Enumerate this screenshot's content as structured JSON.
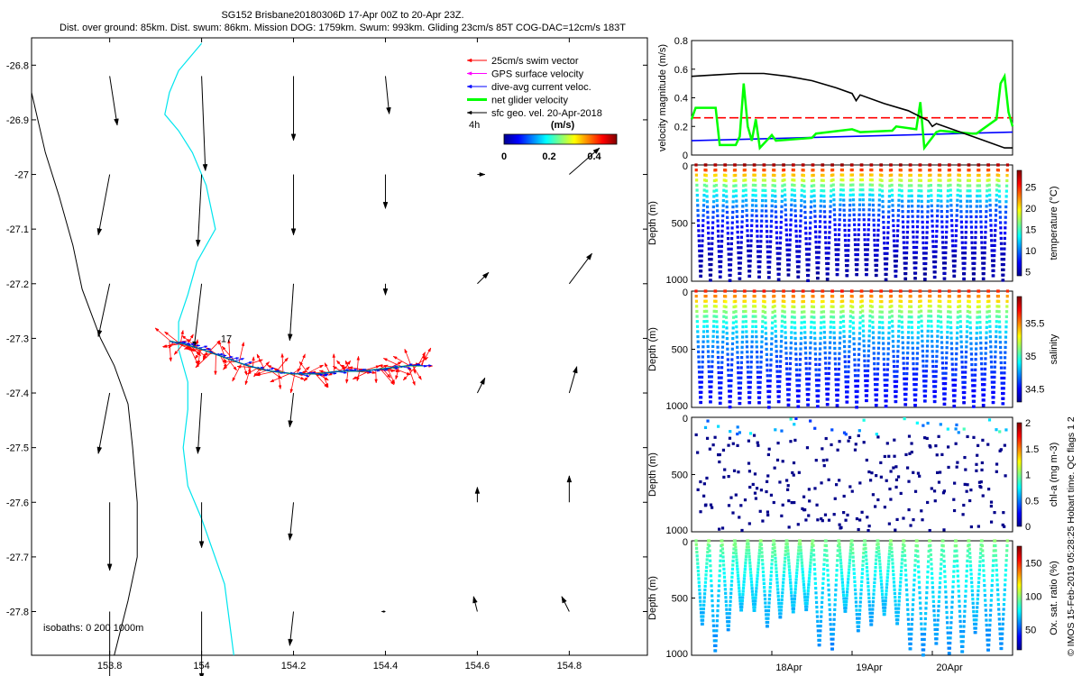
{
  "title": {
    "line1": "SG152 Brisbane20180306D 17-Apr 00Z to 20-Apr 23Z.",
    "line2": "Dist. over ground: 85km. Dist. swum: 86km. Mission DOG: 1759km. Swum: 993km. Gliding 23cm/s 85T COG-DAC=12cm/s 183T"
  },
  "credit": "© IMOS 15-Feb-2019 05:28:25 Hobart time. QC flags 1  2",
  "colors": {
    "swim": "#ff0000",
    "gps": "#ff00ff",
    "dac": "#0000ff",
    "net": "#00ff00",
    "geo": "#000000",
    "coast": "#00e5ee",
    "isobath": "#000000"
  },
  "chart_data": [
    {
      "type": "map",
      "name": "glider track and velocity map",
      "xlim": [
        153.63,
        154.97
      ],
      "ylim": [
        -27.88,
        -26.75
      ],
      "xticks": [
        153.8,
        154,
        154.2,
        154.4,
        154.6,
        154.8
      ],
      "xtick_labels": [
        "153.8",
        "154",
        "154.2",
        "154.4",
        "154.6",
        "154.8"
      ],
      "yticks": [
        -26.8,
        -26.9,
        -27,
        -27.1,
        -27.2,
        -27.3,
        -27.4,
        -27.5,
        -27.6,
        -27.7,
        -27.8
      ],
      "ytick_labels": [
        "-26.8",
        "-26.9",
        "-27",
        "-27.1",
        "-27.2",
        "-27.3",
        "-27.4",
        "-27.5",
        "-27.6",
        "-27.7",
        "-27.8"
      ],
      "legend": [
        "25cm/s swim vector",
        "GPS surface velocity",
        "dive-avg current veloc.",
        "net glider velocity",
        "sfc geo. vel. 20-Apr-2018"
      ],
      "legend_position": "top-right",
      "interval_label": "4h",
      "colorbar": {
        "label": "(m/s)",
        "min": 0,
        "max": 0.5,
        "ticks": [
          0,
          0.2,
          0.4
        ],
        "tick_labels": [
          "0",
          "0.2",
          "0.4"
        ]
      },
      "isobaths_label": "isobaths: 0   200  1000m",
      "track_label": "17",
      "track": {
        "lon": [
          153.93,
          153.96,
          154.0,
          154.05,
          154.1,
          154.15,
          154.2,
          154.25,
          154.3,
          154.35,
          154.4,
          154.45,
          154.48
        ],
        "lat": [
          -27.305,
          -27.31,
          -27.32,
          -27.335,
          -27.35,
          -27.36,
          -27.365,
          -27.365,
          -27.36,
          -27.36,
          -27.355,
          -27.35,
          -27.35
        ]
      },
      "geo_grid": {
        "lon": [
          153.8,
          154.0,
          154.2,
          154.4,
          154.6,
          154.8
        ],
        "lat": [
          -26.82,
          -27.0,
          -27.2,
          -27.4,
          -27.6,
          -27.8
        ],
        "u": [
          [
            0.02,
            0.01,
            0.0,
            0.01,
            null,
            null
          ],
          [
            -0.03,
            -0.01,
            0.0,
            0.0,
            0.02,
            0.08
          ],
          [
            -0.03,
            -0.02,
            -0.01,
            0.0,
            0.03,
            0.06
          ],
          [
            -0.03,
            -0.01,
            -0.01,
            0.0,
            0.02,
            0.02
          ],
          [
            0.0,
            0.0,
            -0.01,
            0.0,
            0.0,
            0.0
          ],
          [
            0.0,
            0.0,
            -0.01,
            -0.01,
            -0.01,
            -0.02
          ]
        ],
        "v": [
          [
            -0.13,
            -0.25,
            -0.17,
            -0.1,
            null,
            null
          ],
          [
            -0.16,
            -0.19,
            -0.16,
            -0.09,
            0.0,
            0.07
          ],
          [
            -0.14,
            -0.17,
            -0.15,
            -0.03,
            0.03,
            0.08
          ],
          [
            -0.16,
            -0.16,
            -0.09,
            0.0,
            0.04,
            0.07
          ],
          [
            -0.18,
            -0.12,
            -0.1,
            0.0,
            0.04,
            0.07
          ],
          [
            -0.2,
            -0.18,
            -0.09,
            0.0,
            0.04,
            0.04
          ]
        ]
      },
      "coastline": {
        "lon": [
          154.0,
          153.95,
          153.93,
          153.92,
          153.95,
          153.98,
          154.01,
          154.03,
          153.99,
          153.97,
          153.95,
          153.95,
          153.97,
          153.97,
          153.96,
          153.97,
          154.0,
          154.05,
          154.07
        ],
        "lat": [
          -26.76,
          -26.81,
          -26.85,
          -26.89,
          -26.92,
          -26.96,
          -27.02,
          -27.1,
          -27.16,
          -27.22,
          -27.27,
          -27.32,
          -27.38,
          -27.43,
          -27.5,
          -27.57,
          -27.63,
          -27.75,
          -27.88
        ]
      },
      "isobath_200": {
        "lon": [
          153.63,
          153.66,
          153.69,
          153.72,
          153.74,
          153.78,
          153.81,
          153.84,
          153.85,
          153.86,
          153.86,
          153.84,
          153.81
        ],
        "lat": [
          -26.85,
          -26.96,
          -27.04,
          -27.13,
          -27.21,
          -27.3,
          -27.35,
          -27.42,
          -27.5,
          -27.6,
          -27.7,
          -27.78,
          -27.88
        ]
      }
    },
    {
      "type": "line",
      "name": "velocity magnitude time series",
      "ylabel": "velocity magnitude (m/s)",
      "ylim": [
        0,
        0.8
      ],
      "yticks": [
        0,
        0.2,
        0.4,
        0.6,
        0.8
      ],
      "ytick_labels": [
        "0",
        "0.2",
        "0.4",
        "0.6",
        "0.8"
      ],
      "xlim": [
        17.0,
        21.0
      ],
      "series": [
        {
          "name": "black",
          "color": "#000000",
          "x": [
            17.0,
            17.3,
            17.6,
            17.9,
            18.2,
            18.5,
            18.8,
            19.0,
            19.05,
            19.1,
            19.4,
            19.7,
            19.95,
            20.0,
            20.05,
            20.3,
            20.6,
            20.9,
            21.0
          ],
          "y": [
            0.55,
            0.56,
            0.57,
            0.57,
            0.55,
            0.52,
            0.47,
            0.43,
            0.38,
            0.42,
            0.36,
            0.31,
            0.24,
            0.2,
            0.22,
            0.17,
            0.11,
            0.05,
            0.05
          ]
        },
        {
          "name": "red dashed",
          "color": "#ff0000",
          "dashed": true,
          "x": [
            17.0,
            21.0
          ],
          "y": [
            0.26,
            0.26
          ]
        },
        {
          "name": "blue",
          "color": "#0000ff",
          "x": [
            17.0,
            21.0
          ],
          "y": [
            0.1,
            0.16
          ]
        },
        {
          "name": "green",
          "color": "#00ff00",
          "x": [
            17.0,
            17.05,
            17.1,
            17.3,
            17.35,
            17.55,
            17.6,
            17.65,
            17.7,
            17.75,
            17.8,
            17.85,
            18.0,
            18.05,
            18.5,
            18.55,
            19.0,
            19.1,
            19.5,
            19.55,
            19.8,
            19.85,
            19.9,
            20.05,
            20.1,
            20.5,
            20.55,
            20.8,
            20.85,
            20.9,
            20.95,
            21.0
          ],
          "y": [
            0.25,
            0.33,
            0.33,
            0.33,
            0.07,
            0.07,
            0.13,
            0.5,
            0.2,
            0.1,
            0.25,
            0.05,
            0.14,
            0.1,
            0.12,
            0.15,
            0.18,
            0.16,
            0.17,
            0.2,
            0.18,
            0.37,
            0.05,
            0.16,
            0.17,
            0.15,
            0.15,
            0.25,
            0.5,
            0.55,
            0.3,
            0.2
          ]
        }
      ]
    },
    {
      "type": "scatter",
      "name": "temperature section",
      "variable": "temperature",
      "ylabel": "Depth (m)",
      "ylim": [
        1000,
        0
      ],
      "yticks": [
        0,
        500,
        1000
      ],
      "ytick_labels": [
        "0",
        "500",
        "1000"
      ],
      "colorbar": {
        "label": "temperature (°C)",
        "min": 4,
        "max": 29,
        "ticks": [
          5,
          10,
          15,
          20,
          25
        ],
        "tick_labels": [
          "5",
          "10",
          "15",
          "20",
          "25"
        ]
      },
      "profiles": 32,
      "max_depth": 1000,
      "surface_value": 28,
      "deep_value": 4.5
    },
    {
      "type": "scatter",
      "name": "salinity section",
      "variable": "salinity",
      "ylabel": "Depth (m)",
      "ylim": [
        1000,
        0
      ],
      "yticks": [
        0,
        500,
        1000
      ],
      "ytick_labels": [
        "0",
        "500",
        "1000"
      ],
      "colorbar": {
        "label": "salinity",
        "min": 34.3,
        "max": 35.9,
        "ticks": [
          34.5,
          35,
          35.5
        ],
        "tick_labels": [
          "34.5",
          "35",
          "35.5"
        ]
      },
      "profiles": 32,
      "max_depth": 1000,
      "surface_value": 35.65,
      "deep_value": 34.45
    },
    {
      "type": "scatter",
      "name": "chlorophyll section",
      "variable": "chl-a",
      "ylabel": "Depth (m)",
      "ylim": [
        1000,
        0
      ],
      "yticks": [
        0,
        500,
        1000
      ],
      "ytick_labels": [
        "0",
        "500",
        "1000"
      ],
      "colorbar": {
        "label": "chl-a (mg m-3)",
        "min": 0,
        "max": 2,
        "ticks": [
          0,
          0.5,
          1,
          1.5,
          2
        ],
        "tick_labels": [
          "0",
          "0.5",
          "1",
          "1.5",
          "2"
        ]
      },
      "profiles": 32,
      "max_depth": 1000,
      "surface_value": 0.6,
      "deep_value": 0.02
    },
    {
      "type": "scatter",
      "name": "oxygen saturation section",
      "variable": "oxygen saturation",
      "ylabel": "Depth (m)",
      "ylim": [
        1000,
        0
      ],
      "yticks": [
        0,
        500,
        1000
      ],
      "ytick_labels": [
        "0",
        "500",
        "1000"
      ],
      "colorbar": {
        "label": "Ox. sat. ratio (%)",
        "min": 20,
        "max": 175,
        "ticks": [
          50,
          100,
          150
        ],
        "tick_labels": [
          "50",
          "100",
          "150"
        ]
      },
      "profiles": 24,
      "max_depth": 1000,
      "surface_value": 98,
      "deep_value": 55,
      "xticks": [
        18,
        19,
        20
      ],
      "xtick_labels": [
        "18Apr",
        "19Apr",
        "20Apr"
      ]
    }
  ]
}
